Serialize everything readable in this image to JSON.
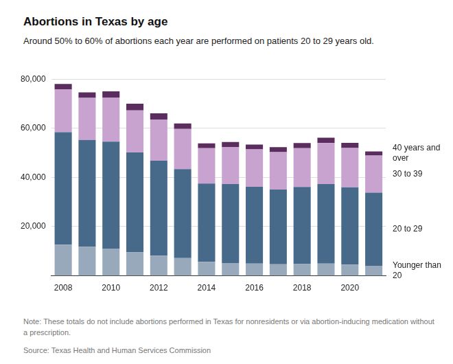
{
  "chart_data": {
    "type": "bar",
    "title": "Abortions in Texas by age",
    "subtitle": "Around 50% to 60% of abortions each year are performed on patients 20 to 29 years old.",
    "note": "Note: These totals do not include abortions performed in Texas for nonresidents or via abortion-inducing medication without a prescription.",
    "source": "Source: Texas Health and Human Services Commission",
    "categories": [
      "2008",
      null,
      "2010",
      null,
      "2012",
      null,
      "2014",
      null,
      "2016",
      null,
      "2018",
      null,
      "2020",
      null
    ],
    "series": [
      {
        "name": "Younger than 20",
        "color": "#98a9bc",
        "values": [
          12700,
          11800,
          10900,
          9600,
          8200,
          7200,
          5700,
          5200,
          5000,
          4700,
          4800,
          5000,
          4600,
          4100
        ]
      },
      {
        "name": "20 to 29",
        "color": "#476a8a",
        "values": [
          45700,
          43500,
          43700,
          40600,
          38600,
          36200,
          31800,
          32100,
          31200,
          30400,
          31300,
          32300,
          31400,
          29700
        ]
      },
      {
        "name": "30 to 39",
        "color": "#c9a3cf",
        "values": [
          17400,
          17100,
          17900,
          17100,
          16800,
          16300,
          14400,
          15100,
          15200,
          15200,
          15800,
          16700,
          16000,
          15100
        ]
      },
      {
        "name": "40 years and over",
        "color": "#5b2c5e",
        "values": [
          2200,
          2200,
          2500,
          2700,
          2500,
          2300,
          2000,
          2000,
          2000,
          2000,
          2100,
          2200,
          2100,
          1700
        ]
      }
    ],
    "stacked": true,
    "ylim": [
      0,
      80000
    ],
    "yticks": [
      {
        "value": 20000,
        "label": "20,000"
      },
      {
        "value": 40000,
        "label": "40,000"
      },
      {
        "value": 60000,
        "label": "60,000"
      },
      {
        "value": 80000,
        "label": "80,000"
      }
    ],
    "grid": true
  }
}
